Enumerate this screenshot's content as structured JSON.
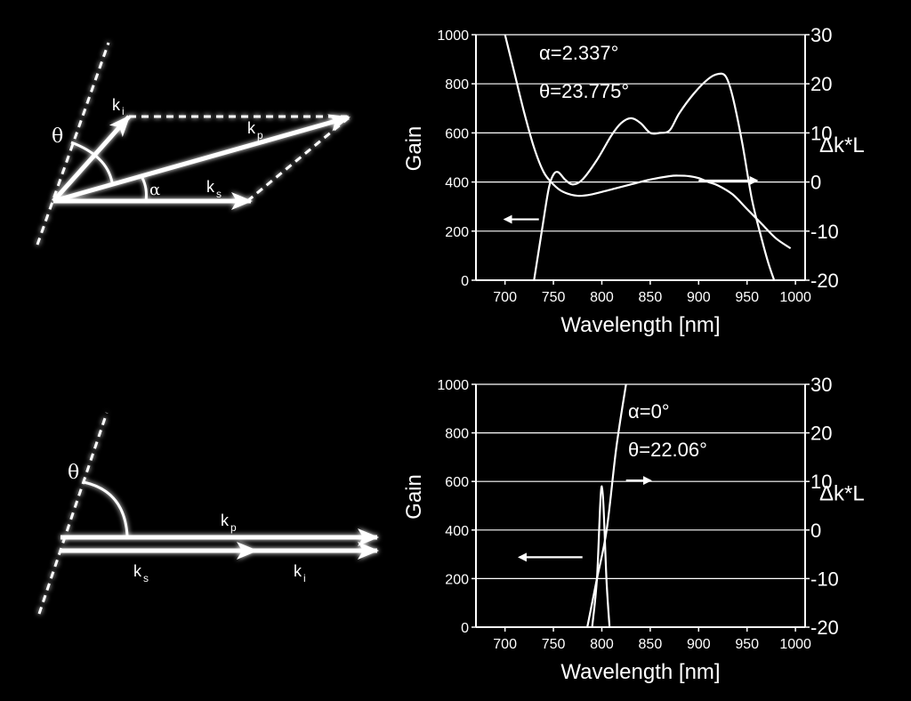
{
  "colors": {
    "background": "#000000",
    "foreground": "#ffffff"
  },
  "diagrams": [
    {
      "theta": "θ",
      "alpha": "α",
      "labels": [
        {
          "main": "k",
          "sub": "i"
        },
        {
          "main": "k",
          "sub": "p"
        },
        {
          "main": "k",
          "sub": "s"
        }
      ]
    },
    {
      "theta": "θ",
      "labels": [
        {
          "main": "k",
          "sub": "p"
        },
        {
          "main": "k",
          "sub": "s"
        },
        {
          "main": "k",
          "sub": "i"
        }
      ]
    }
  ],
  "chart_data": [
    {
      "type": "line",
      "xlabel": "Wavelength [nm]",
      "ylabel": "Gain",
      "y2label": "Δk*L",
      "xlim": [
        670,
        1010
      ],
      "xticks": [
        700,
        750,
        800,
        850,
        900,
        950,
        1000
      ],
      "ylim": [
        0,
        1000
      ],
      "yticks": [
        0,
        200,
        400,
        600,
        800,
        1000
      ],
      "y2lim": [
        -20,
        30
      ],
      "y2ticks": [
        -20,
        -10,
        0,
        10,
        20,
        30
      ],
      "grid": "horizontal",
      "annotations": [
        "α=2.337°",
        "θ=23.775°"
      ],
      "series": [
        {
          "axis": "left",
          "x": [
            730,
            738,
            745,
            750,
            755,
            762,
            770,
            780,
            795,
            810,
            820,
            830,
            840,
            850,
            860,
            870,
            880,
            895,
            910,
            920,
            928,
            935,
            945,
            955,
            965,
            972,
            978
          ],
          "y": [
            0,
            200,
            370,
            430,
            440,
            410,
            390,
            410,
            490,
            590,
            640,
            660,
            640,
            600,
            600,
            610,
            680,
            760,
            820,
            840,
            830,
            750,
            560,
            330,
            170,
            70,
            0
          ]
        },
        {
          "axis": "right",
          "x": [
            700,
            710,
            720,
            730,
            740,
            750,
            760,
            775,
            790,
            810,
            830,
            850,
            870,
            880,
            890,
            900,
            910,
            920,
            935,
            950,
            965,
            980,
            995
          ],
          "y": [
            30,
            22,
            14,
            7,
            2,
            -0.5,
            -2,
            -2.8,
            -2.5,
            -1.5,
            -0.5,
            0.5,
            1.2,
            1.3,
            1.2,
            0.8,
            0,
            -0.7,
            -2.5,
            -5.5,
            -8.5,
            -11.5,
            -13.5
          ]
        }
      ],
      "arrows": [
        {
          "direction": "left",
          "x": [
            735,
            700
          ],
          "y2": -7.6
        },
        {
          "direction": "right",
          "x": [
            900,
            960
          ],
          "y2": 0.3
        }
      ]
    },
    {
      "type": "line",
      "xlabel": "Wavelength [nm]",
      "ylabel": "Gain",
      "y2label": "Δk*L",
      "xlim": [
        670,
        1010
      ],
      "xticks": [
        700,
        750,
        800,
        850,
        900,
        950,
        1000
      ],
      "ylim": [
        0,
        1000
      ],
      "yticks": [
        0,
        200,
        400,
        600,
        800,
        1000
      ],
      "y2lim": [
        -20,
        30
      ],
      "y2ticks": [
        -20,
        -10,
        0,
        10,
        20,
        30
      ],
      "grid": "horizontal",
      "annotations": [
        "α=0°",
        "θ=22.06°"
      ],
      "series": [
        {
          "axis": "left",
          "x": [
            790,
            795,
            800,
            805,
            808
          ],
          "y": [
            0,
            200,
            580,
            180,
            0
          ]
        },
        {
          "axis": "right",
          "x": [
            785,
            795,
            805,
            815,
            825
          ],
          "y": [
            -20,
            -10,
            0,
            17,
            30
          ]
        }
      ],
      "arrows": [
        {
          "direction": "left",
          "x": [
            780,
            715
          ],
          "y2": -5.6
        },
        {
          "direction": "right",
          "x": [
            825,
            850
          ],
          "y2": 10.2
        }
      ]
    }
  ]
}
